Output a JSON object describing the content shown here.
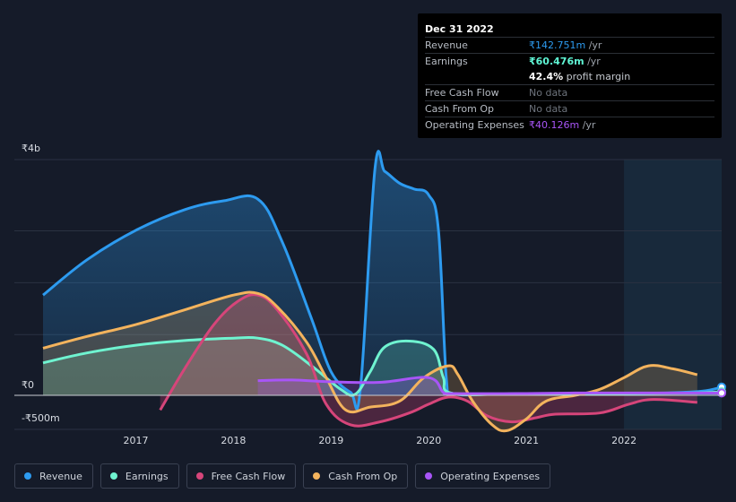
{
  "tooltip": {
    "date": "Dec 31 2022",
    "rows": {
      "revenue": {
        "label": "Revenue",
        "value": "₹142.751m",
        "unit": " /yr",
        "color": "#2d9bf0"
      },
      "earnings": {
        "label": "Earnings",
        "value": "₹60.476m",
        "unit": " /yr",
        "color": "#5ff5d4"
      },
      "margin": {
        "value": "42.4%",
        "text": " profit margin"
      },
      "fcf": {
        "label": "Free Cash Flow",
        "value": "No data"
      },
      "cfo": {
        "label": "Cash From Op",
        "value": "No data"
      },
      "opex": {
        "label": "Operating Expenses",
        "value": "₹40.126m",
        "unit": " /yr",
        "color": "#a855f7"
      }
    }
  },
  "legend": [
    {
      "label": "Revenue",
      "color": "#2d9bf0"
    },
    {
      "label": "Earnings",
      "color": "#6ff3d0"
    },
    {
      "label": "Free Cash Flow",
      "color": "#d6457a"
    },
    {
      "label": "Cash From Op",
      "color": "#f3b35d"
    },
    {
      "label": "Operating Expenses",
      "color": "#a855f7"
    }
  ],
  "chart_data": {
    "type": "area",
    "currency_unit": "₹ billions",
    "y_tick_labels": [
      "₹4b",
      "₹0",
      "-₹500m"
    ],
    "ylim": [
      -0.5,
      4
    ],
    "x_tick_labels": [
      "2017",
      "2018",
      "2019",
      "2020",
      "2021",
      "2022"
    ],
    "xlim": [
      2016.05,
      2023.0
    ],
    "forecast_start": 2022.0,
    "grid": true,
    "legend_position": "bottom",
    "series": [
      {
        "name": "Revenue",
        "color": "#2d9bf0",
        "points": [
          [
            2016.05,
            1.7
          ],
          [
            2016.5,
            2.3
          ],
          [
            2017.0,
            2.8
          ],
          [
            2017.5,
            3.15
          ],
          [
            2017.9,
            3.3
          ],
          [
            2018.25,
            3.33
          ],
          [
            2018.5,
            2.6
          ],
          [
            2018.8,
            1.3
          ],
          [
            2019.0,
            0.4
          ],
          [
            2019.2,
            0.05
          ],
          [
            2019.3,
            0.1
          ],
          [
            2019.45,
            3.85
          ],
          [
            2019.55,
            3.8
          ],
          [
            2019.7,
            3.6
          ],
          [
            2019.85,
            3.5
          ],
          [
            2020.0,
            3.4
          ],
          [
            2020.1,
            2.8
          ],
          [
            2020.18,
            0.3
          ],
          [
            2020.25,
            0.03
          ],
          [
            2020.6,
            0.02
          ],
          [
            2021.0,
            0.02
          ],
          [
            2021.5,
            0.02
          ],
          [
            2022.0,
            0.03
          ],
          [
            2022.4,
            0.04
          ],
          [
            2022.8,
            0.07
          ],
          [
            2023.0,
            0.14
          ]
        ]
      },
      {
        "name": "Earnings",
        "color": "#6ff3d0",
        "points": [
          [
            2016.05,
            0.55
          ],
          [
            2016.5,
            0.72
          ],
          [
            2017.0,
            0.85
          ],
          [
            2017.5,
            0.93
          ],
          [
            2018.0,
            0.97
          ],
          [
            2018.25,
            0.97
          ],
          [
            2018.5,
            0.85
          ],
          [
            2018.8,
            0.5
          ],
          [
            2019.1,
            0.1
          ],
          [
            2019.25,
            0.02
          ],
          [
            2019.4,
            0.4
          ],
          [
            2019.55,
            0.82
          ],
          [
            2019.8,
            0.92
          ],
          [
            2020.05,
            0.78
          ],
          [
            2020.15,
            0.3
          ],
          [
            2020.25,
            0.03
          ],
          [
            2021.0,
            0.03
          ],
          [
            2022.0,
            0.03
          ],
          [
            2022.7,
            0.04
          ],
          [
            2023.0,
            0.06
          ]
        ]
      },
      {
        "name": "Free Cash Flow",
        "color": "#d6457a",
        "points": [
          [
            2017.25,
            -0.25
          ],
          [
            2017.5,
            0.45
          ],
          [
            2017.8,
            1.2
          ],
          [
            2018.05,
            1.6
          ],
          [
            2018.25,
            1.7
          ],
          [
            2018.45,
            1.45
          ],
          [
            2018.75,
            0.7
          ],
          [
            2018.95,
            -0.15
          ],
          [
            2019.2,
            -0.5
          ],
          [
            2019.5,
            -0.45
          ],
          [
            2019.8,
            -0.3
          ],
          [
            2020.0,
            -0.15
          ],
          [
            2020.2,
            -0.03
          ],
          [
            2020.4,
            -0.1
          ],
          [
            2020.6,
            -0.35
          ],
          [
            2020.85,
            -0.45
          ],
          [
            2021.1,
            -0.38
          ],
          [
            2021.3,
            -0.32
          ],
          [
            2021.75,
            -0.3
          ],
          [
            2022.05,
            -0.15
          ],
          [
            2022.3,
            -0.07
          ],
          [
            2022.75,
            -0.12
          ]
        ]
      },
      {
        "name": "Cash From Op",
        "color": "#f3b35d",
        "points": [
          [
            2016.05,
            0.8
          ],
          [
            2016.5,
            1.0
          ],
          [
            2017.0,
            1.2
          ],
          [
            2017.5,
            1.45
          ],
          [
            2018.0,
            1.7
          ],
          [
            2018.25,
            1.73
          ],
          [
            2018.45,
            1.5
          ],
          [
            2018.75,
            0.9
          ],
          [
            2018.95,
            0.3
          ],
          [
            2019.15,
            -0.25
          ],
          [
            2019.4,
            -0.2
          ],
          [
            2019.7,
            -0.1
          ],
          [
            2019.95,
            0.3
          ],
          [
            2020.2,
            0.5
          ],
          [
            2020.3,
            0.35
          ],
          [
            2020.45,
            -0.1
          ],
          [
            2020.65,
            -0.5
          ],
          [
            2020.8,
            -0.6
          ],
          [
            2021.0,
            -0.4
          ],
          [
            2021.2,
            -0.1
          ],
          [
            2021.5,
            0.0
          ],
          [
            2021.75,
            0.1
          ],
          [
            2022.0,
            0.3
          ],
          [
            2022.25,
            0.5
          ],
          [
            2022.5,
            0.45
          ],
          [
            2022.75,
            0.35
          ]
        ]
      },
      {
        "name": "Operating Expenses",
        "color": "#a855f7",
        "points": [
          [
            2018.25,
            0.25
          ],
          [
            2018.6,
            0.26
          ],
          [
            2019.0,
            0.23
          ],
          [
            2019.5,
            0.22
          ],
          [
            2020.0,
            0.3
          ],
          [
            2020.15,
            0.05
          ],
          [
            2020.25,
            0.03
          ],
          [
            2021.0,
            0.03
          ],
          [
            2021.5,
            0.04
          ],
          [
            2022.0,
            0.04
          ],
          [
            2022.5,
            0.04
          ],
          [
            2023.0,
            0.04
          ]
        ]
      }
    ]
  }
}
